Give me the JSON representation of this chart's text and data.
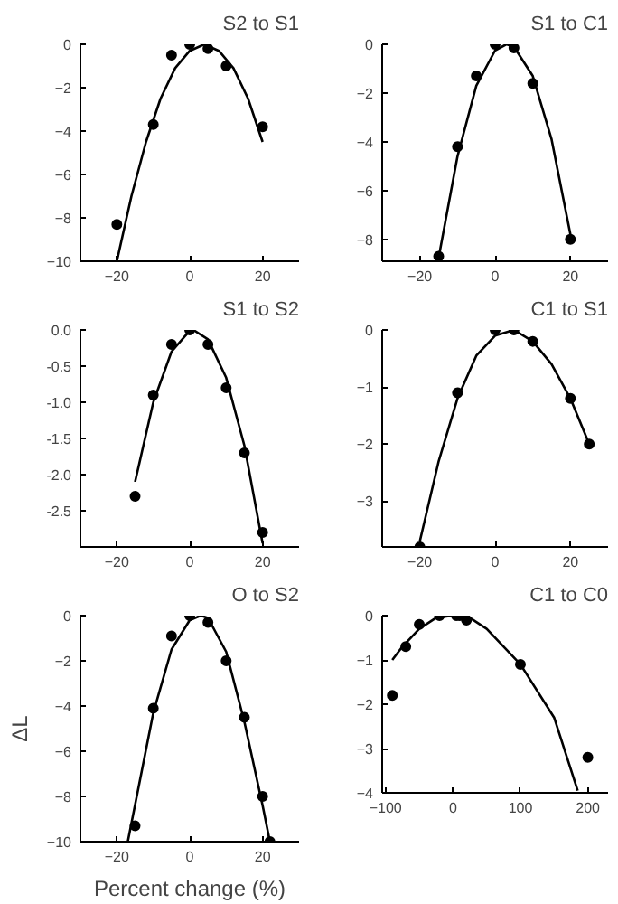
{
  "chart_data": [
    {
      "type": "scatter",
      "title": "S2 to S1",
      "xlim": [
        -30,
        30
      ],
      "xticks": [
        -20,
        0,
        20
      ],
      "ylim": [
        -10,
        0
      ],
      "yticks": [
        0,
        -2,
        -4,
        -6,
        -8,
        -10
      ],
      "grid": false,
      "series": [
        {
          "color": "#000000",
          "marker": "circle",
          "x": [
            -20,
            -10,
            -5,
            0,
            5,
            10,
            20
          ],
          "values": [
            -8.3,
            -3.7,
            -0.5,
            0,
            -0.2,
            -1.0,
            -3.8
          ]
        },
        {
          "type": "line",
          "color": "#000000",
          "x": [
            -20,
            -16,
            -12,
            -8,
            -4,
            0,
            4,
            8,
            12,
            16,
            20
          ],
          "values": [
            -10,
            -7.0,
            -4.5,
            -2.5,
            -1.1,
            -0.3,
            0,
            -0.3,
            -1.1,
            -2.5,
            -4.5
          ]
        }
      ]
    },
    {
      "type": "scatter",
      "title": "S1 to C1",
      "xlim": [
        -30,
        30
      ],
      "xticks": [
        -20,
        0,
        20
      ],
      "ylim": [
        -8.9,
        0
      ],
      "yticks": [
        0,
        -2,
        -4,
        -6,
        -8
      ],
      "grid": false,
      "series": [
        {
          "color": "#000000",
          "marker": "circle",
          "x": [
            -15,
            -10,
            -5,
            0,
            5,
            10,
            20
          ],
          "values": [
            -8.7,
            -4.2,
            -1.3,
            0,
            -0.15,
            -1.6,
            -8.0
          ]
        },
        {
          "type": "line",
          "color": "#000000",
          "x": [
            -15,
            -10,
            -5,
            0,
            3,
            5,
            10,
            15,
            20
          ],
          "values": [
            -8.75,
            -4.6,
            -1.7,
            -0.25,
            0,
            -0.1,
            -1.3,
            -3.9,
            -7.8
          ]
        }
      ]
    },
    {
      "type": "scatter",
      "title": "S1 to S2",
      "xlim": [
        -30,
        30
      ],
      "xticks": [
        -20,
        0,
        20
      ],
      "ylim": [
        -3,
        0
      ],
      "yticks": [
        {
          "value": 0,
          "label": "0.0"
        },
        {
          "value": -0.5,
          "label": "-0.5"
        },
        {
          "value": -1,
          "label": "-1.0"
        },
        {
          "value": -1.5,
          "label": "-1.5"
        },
        {
          "value": -2,
          "label": "-2.0"
        },
        {
          "value": -2.5,
          "label": "-2.5"
        }
      ],
      "grid": false,
      "series": [
        {
          "color": "#000000",
          "marker": "circle",
          "x": [
            -15,
            -10,
            -5,
            0,
            5,
            10,
            15,
            20
          ],
          "values": [
            -2.3,
            -0.9,
            -0.2,
            0,
            -0.2,
            -0.8,
            -1.7,
            -2.8
          ]
        },
        {
          "type": "line",
          "color": "#000000",
          "x": [
            -15,
            -10,
            -5,
            0,
            1,
            5,
            10,
            15,
            20
          ],
          "values": [
            -2.1,
            -1.0,
            -0.3,
            -0.01,
            0,
            -0.13,
            -0.66,
            -1.6,
            -2.95
          ]
        }
      ]
    },
    {
      "type": "scatter",
      "title": "C1 to S1",
      "xlim": [
        -30,
        30
      ],
      "xticks": [
        -20,
        0,
        20
      ],
      "ylim": [
        -3.8,
        0
      ],
      "yticks": [
        0,
        -1,
        -2,
        -3
      ],
      "grid": false,
      "series": [
        {
          "color": "#000000",
          "marker": "circle",
          "x": [
            -20,
            -10,
            0,
            5,
            10,
            20,
            25
          ],
          "values": [
            -3.8,
            -1.1,
            0,
            0,
            -0.2,
            -1.2,
            -2.0
          ]
        },
        {
          "type": "line",
          "color": "#000000",
          "x": [
            -20,
            -15,
            -10,
            -5,
            0,
            5,
            10,
            15,
            20,
            25
          ],
          "values": [
            -3.7,
            -2.3,
            -1.2,
            -0.45,
            -0.1,
            0,
            -0.2,
            -0.6,
            -1.2,
            -2.0
          ]
        }
      ]
    },
    {
      "type": "scatter",
      "title": "O to S2",
      "xlabel": "Percent change (%)",
      "ylabel": "ΔL",
      "xlim": [
        -30,
        30
      ],
      "xticks": [
        -20,
        0,
        20
      ],
      "ylim": [
        -10,
        0
      ],
      "yticks": [
        0,
        -2,
        -4,
        -6,
        -8,
        -10
      ],
      "grid": false,
      "series": [
        {
          "color": "#000000",
          "marker": "circle",
          "x": [
            -15,
            -10,
            -5,
            0,
            5,
            10,
            15,
            20,
            22
          ],
          "values": [
            -9.3,
            -4.1,
            -0.9,
            0,
            -0.3,
            -2.0,
            -4.5,
            -8.0,
            -10
          ]
        },
        {
          "type": "line",
          "color": "#000000",
          "x": [
            -17,
            -10,
            -5,
            0,
            3,
            5,
            10,
            15,
            20,
            22
          ],
          "values": [
            -10,
            -4.3,
            -1.5,
            -0.2,
            0,
            -0.1,
            -1.6,
            -4.7,
            -8.4,
            -10
          ]
        }
      ]
    },
    {
      "type": "scatter",
      "title": "C1 to C0",
      "xlim": [
        -105,
        230
      ],
      "xticks": [
        -100,
        0,
        100,
        200
      ],
      "ylim": [
        -4,
        0
      ],
      "yticks": [
        0,
        -1,
        -2,
        -3,
        -4
      ],
      "grid": false,
      "series": [
        {
          "color": "#000000",
          "marker": "circle",
          "x": [
            -90,
            -70,
            -50,
            -20,
            5,
            10,
            20,
            100,
            200
          ],
          "values": [
            -1.8,
            -0.7,
            -0.2,
            0,
            0,
            0,
            -0.1,
            -1.1,
            -3.2
          ]
        },
        {
          "type": "line",
          "color": "#000000",
          "x": [
            -90,
            -75,
            -50,
            -25,
            0,
            25,
            50,
            100,
            150,
            185
          ],
          "values": [
            -1.0,
            -0.7,
            -0.3,
            -0.05,
            0,
            -0.05,
            -0.3,
            -1.1,
            -2.3,
            -3.95
          ]
        }
      ]
    }
  ]
}
